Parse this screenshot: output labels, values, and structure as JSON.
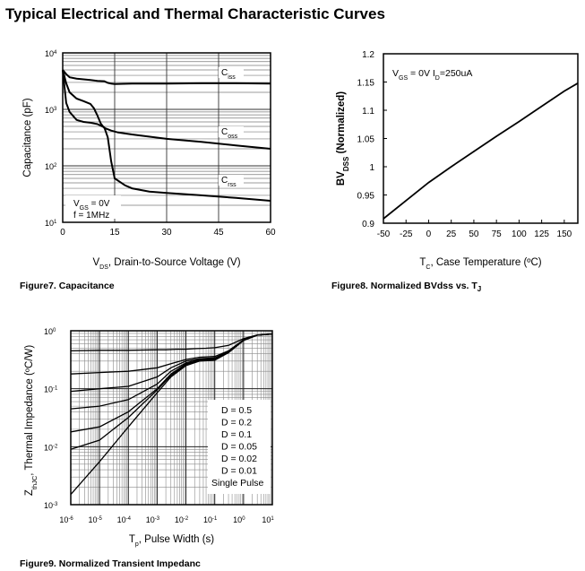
{
  "page": {
    "title": "Typical Electrical and Thermal Characteristic Curves"
  },
  "captions": {
    "fig7": "Figure7. Capacitance",
    "fig8": "Figure8. Normalized BVdss vs. T",
    "fig8_sub": "J",
    "fig9": "Figure9.   Normalized Transient Impedanc"
  },
  "chart_data": [
    {
      "type": "line",
      "title": "",
      "xlabel": {
        "prefix": "V",
        "sub": "DS",
        "suffix": ", Drain-to-Source Voltage (V)"
      },
      "ylabel": "Capacitance (pF)",
      "y_scale": "log",
      "xlim": [
        0,
        60
      ],
      "ylim": [
        10,
        10000
      ],
      "x_ticks": [
        0,
        15,
        30,
        45,
        60
      ],
      "x_tick_labels": [
        "0",
        "15",
        "30",
        "45",
        "60"
      ],
      "y_ticks": [
        10,
        100,
        1000,
        10000
      ],
      "y_tick_labels": [
        {
          "base": "10",
          "exp": "1"
        },
        {
          "base": "10",
          "exp": "2"
        },
        {
          "base": "10",
          "exp": "3"
        },
        {
          "base": "10",
          "exp": "4"
        }
      ],
      "grid": true,
      "annotation": {
        "line1_prefix": "V",
        "line1_sub": "GS",
        "line1_suffix": " = 0V",
        "line2": "f = 1MHz"
      },
      "series": [
        {
          "name": "C",
          "sub": "iss",
          "x": [
            0,
            1,
            2,
            4,
            6,
            8,
            10,
            12,
            13,
            14,
            15,
            20,
            30,
            40,
            50,
            60
          ],
          "y": [
            5000,
            4200,
            3700,
            3500,
            3400,
            3300,
            3200,
            3150,
            2950,
            2850,
            2800,
            2850,
            2850,
            2900,
            2900,
            2850
          ]
        },
        {
          "name": "C",
          "sub": "oss",
          "x": [
            0,
            1,
            2,
            4,
            6,
            8,
            9,
            10,
            11,
            12,
            14,
            16,
            20,
            30,
            40,
            50,
            60
          ],
          "y": [
            5000,
            2900,
            2000,
            1550,
            1400,
            1250,
            1050,
            780,
            560,
            470,
            420,
            390,
            360,
            300,
            265,
            230,
            200
          ]
        },
        {
          "name": "C",
          "sub": "rss",
          "x": [
            0,
            1,
            2,
            4,
            6,
            8,
            10,
            12,
            13,
            14,
            15,
            18,
            20,
            25,
            30,
            40,
            50,
            60
          ],
          "y": [
            5000,
            1300,
            900,
            650,
            600,
            580,
            550,
            480,
            320,
            120,
            60,
            45,
            40,
            35,
            33,
            30,
            27,
            24
          ]
        }
      ]
    },
    {
      "type": "line",
      "title": "",
      "xlabel": {
        "prefix": "T",
        "sub": "C",
        "suffix": ", Case Temperature (ºC)"
      },
      "ylabel": {
        "prefix": "BV",
        "sub": "DSS",
        "suffix": " (Normalized)"
      },
      "xlim": [
        -50,
        165
      ],
      "ylim": [
        0.9,
        1.2
      ],
      "x_ticks": [
        -50,
        -25,
        0,
        25,
        50,
        75,
        100,
        125,
        150
      ],
      "x_tick_labels": [
        "-50",
        "-25",
        "0",
        "25",
        "50",
        "75",
        "100",
        "125",
        "150"
      ],
      "y_ticks": [
        0.9,
        0.95,
        1.0,
        1.05,
        1.1,
        1.15,
        1.2
      ],
      "y_tick_labels": [
        "0.9",
        "0.95",
        "1",
        "1.05",
        "1.1",
        "1.15",
        "1.2"
      ],
      "grid": false,
      "annotation": {
        "p1": "V",
        "s1": "GS",
        "t1": " = 0V I",
        "s2": "D",
        "t2": "=250uA"
      },
      "series": [
        {
          "x": [
            -50,
            -25,
            0,
            25,
            50,
            75,
            100,
            125,
            150,
            165
          ],
          "y": [
            0.908,
            0.94,
            0.972,
            1.0,
            1.027,
            1.054,
            1.08,
            1.107,
            1.134,
            1.148
          ]
        }
      ]
    },
    {
      "type": "line",
      "title": "",
      "xlabel": {
        "prefix": "T",
        "sub": "p",
        "suffix": ", Pulse Width (s)"
      },
      "ylabel": {
        "prefix": "Z",
        "sub": "thJC",
        "suffix": ", Thermal Impedance (ºC/W)"
      },
      "x_scale": "log",
      "y_scale": "log",
      "xlim": [
        1e-06,
        10
      ],
      "ylim": [
        0.001,
        1
      ],
      "x_ticks": [
        1e-06,
        1e-05,
        0.0001,
        0.001,
        0.01,
        0.1,
        1,
        10
      ],
      "x_tick_labels": [
        {
          "base": "10",
          "exp": "-6"
        },
        {
          "base": "10",
          "exp": "-5"
        },
        {
          "base": "10",
          "exp": "-4"
        },
        {
          "base": "10",
          "exp": "-3"
        },
        {
          "base": "10",
          "exp": "-2"
        },
        {
          "base": "10",
          "exp": "-1"
        },
        {
          "base": "10",
          "exp": "0"
        },
        {
          "base": "10",
          "exp": "1"
        }
      ],
      "y_ticks": [
        0.001,
        0.01,
        0.1,
        1
      ],
      "y_tick_labels": [
        {
          "base": "10",
          "exp": "-3"
        },
        {
          "base": "10",
          "exp": "-2"
        },
        {
          "base": "10",
          "exp": "-1"
        },
        {
          "base": "10",
          "exp": "0"
        }
      ],
      "grid": true,
      "legend_location": "lower-right",
      "series": [
        {
          "name": "D = 0.5",
          "x": [
            1e-06,
            1e-05,
            0.0001,
            0.001,
            0.002,
            0.005,
            0.01,
            0.02,
            0.05,
            0.1,
            0.3,
            1,
            3,
            10
          ],
          "y": [
            0.45,
            0.46,
            0.46,
            0.47,
            0.47,
            0.48,
            0.48,
            0.49,
            0.5,
            0.51,
            0.56,
            0.73,
            0.85,
            0.88
          ]
        },
        {
          "name": "D = 0.2",
          "x": [
            1e-06,
            1e-05,
            0.0001,
            0.001,
            0.003,
            0.01,
            0.03,
            0.1,
            0.3,
            1,
            3,
            10
          ],
          "y": [
            0.18,
            0.19,
            0.2,
            0.23,
            0.27,
            0.32,
            0.35,
            0.36,
            0.45,
            0.7,
            0.84,
            0.88
          ]
        },
        {
          "name": "D = 0.1",
          "x": [
            1e-06,
            1e-05,
            0.0001,
            0.001,
            0.003,
            0.01,
            0.03,
            0.1,
            0.3,
            1,
            3,
            10
          ],
          "y": [
            0.09,
            0.1,
            0.11,
            0.16,
            0.23,
            0.3,
            0.33,
            0.34,
            0.44,
            0.69,
            0.84,
            0.88
          ]
        },
        {
          "name": "D = 0.05",
          "x": [
            1e-06,
            1e-05,
            0.0001,
            0.001,
            0.003,
            0.01,
            0.03,
            0.1,
            0.3,
            1,
            3,
            10
          ],
          "y": [
            0.045,
            0.05,
            0.065,
            0.12,
            0.2,
            0.28,
            0.32,
            0.33,
            0.43,
            0.69,
            0.84,
            0.88
          ]
        },
        {
          "name": "D = 0.02",
          "x": [
            1e-06,
            1e-05,
            0.0001,
            0.001,
            0.003,
            0.01,
            0.03,
            0.1,
            0.3,
            1,
            3,
            10
          ],
          "y": [
            0.018,
            0.022,
            0.04,
            0.1,
            0.18,
            0.27,
            0.31,
            0.32,
            0.43,
            0.68,
            0.84,
            0.88
          ]
        },
        {
          "name": "D = 0.01",
          "x": [
            1e-06,
            1e-05,
            0.0001,
            0.001,
            0.003,
            0.01,
            0.03,
            0.1,
            0.3,
            1,
            3,
            10
          ],
          "y": [
            0.009,
            0.013,
            0.032,
            0.095,
            0.17,
            0.26,
            0.31,
            0.32,
            0.43,
            0.68,
            0.84,
            0.88
          ]
        },
        {
          "name": "Single Pulse",
          "x": [
            1e-06,
            1e-05,
            0.0001,
            0.001,
            0.003,
            0.01,
            0.03,
            0.1,
            0.3,
            1,
            3,
            10
          ],
          "y": [
            0.0015,
            0.0055,
            0.022,
            0.085,
            0.16,
            0.25,
            0.3,
            0.31,
            0.42,
            0.68,
            0.84,
            0.88
          ]
        }
      ]
    }
  ]
}
